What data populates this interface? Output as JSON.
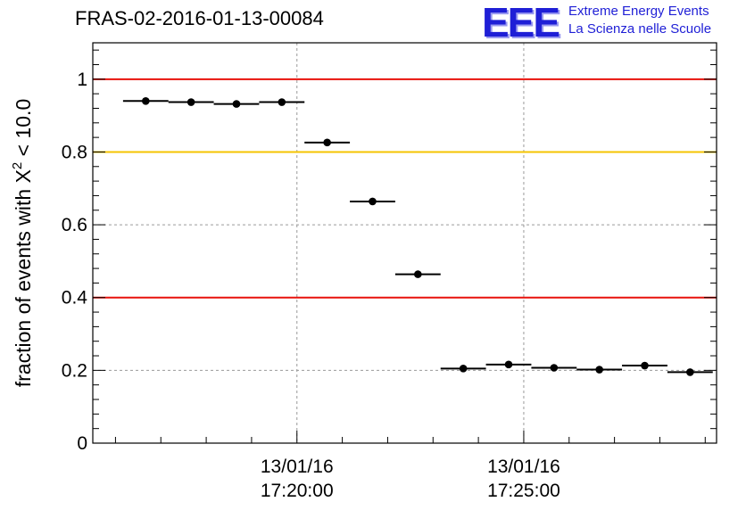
{
  "title": "FRAS-02-2016-01-13-00084",
  "logo": {
    "mark": "EEE",
    "line1": "Extreme Energy Events",
    "line2": "La Scienza nelle Scuole"
  },
  "colors": {
    "threshold_red": "#e8120c",
    "threshold_yellow": "#f5c400",
    "logo_blue": "#1f1fd6"
  },
  "chart_data": {
    "type": "scatter",
    "ylabel_prefix": "fraction of events with X",
    "ylabel_sup": "2",
    "ylabel_suffix": " < 10.0",
    "ylim": [
      0,
      1.1
    ],
    "y_ticks": [
      "0",
      "0.2",
      "0.4",
      "0.6",
      "0.8",
      "1"
    ],
    "x_ticks": [
      {
        "date": "13/01/16",
        "time": "17:20:00"
      },
      {
        "date": "13/01/16",
        "time": "17:25:00"
      }
    ],
    "grid": true,
    "threshold_lines": [
      {
        "value": 1.0,
        "color": "red"
      },
      {
        "value": 0.8,
        "color": "yellow"
      },
      {
        "value": 0.4,
        "color": "red"
      }
    ],
    "points": [
      {
        "x_start": "17:16:10",
        "x_end": "17:17:10",
        "y": 0.94
      },
      {
        "x_start": "17:17:10",
        "x_end": "17:18:10",
        "y": 0.937
      },
      {
        "x_start": "17:18:10",
        "x_end": "17:19:10",
        "y": 0.932
      },
      {
        "x_start": "17:19:10",
        "x_end": "17:20:10",
        "y": 0.937
      },
      {
        "x_start": "17:20:10",
        "x_end": "17:21:10",
        "y": 0.826
      },
      {
        "x_start": "17:21:10",
        "x_end": "17:22:10",
        "y": 0.664
      },
      {
        "x_start": "17:22:10",
        "x_end": "17:23:10",
        "y": 0.464
      },
      {
        "x_start": "17:23:10",
        "x_end": "17:24:10",
        "y": 0.205
      },
      {
        "x_start": "17:24:10",
        "x_end": "17:25:10",
        "y": 0.216
      },
      {
        "x_start": "17:25:10",
        "x_end": "17:26:10",
        "y": 0.207
      },
      {
        "x_start": "17:26:10",
        "x_end": "17:27:10",
        "y": 0.202
      },
      {
        "x_start": "17:27:10",
        "x_end": "17:28:10",
        "y": 0.213
      },
      {
        "x_start": "17:28:10",
        "x_end": "17:29:10",
        "y": 0.195
      }
    ]
  }
}
